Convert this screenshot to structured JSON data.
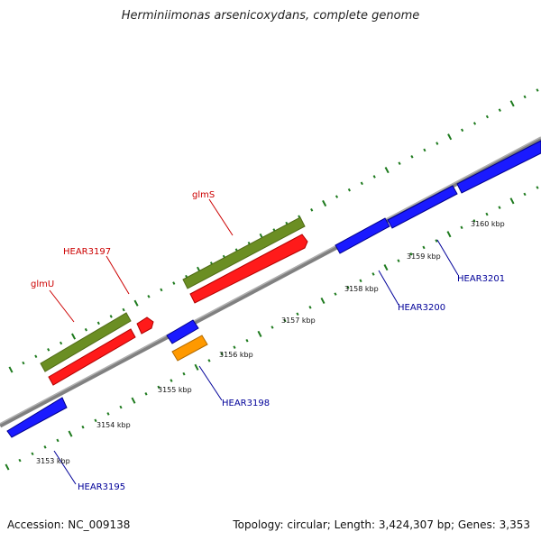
{
  "title": "Herminiimonas arsenicoxydans, complete genome",
  "footer": {
    "accession": "Accession: NC_009138",
    "summary": "Topology: circular; Length: 3,424,307 bp; Genes: 3,353"
  },
  "colors": {
    "backbone": "#808080",
    "tick_marks": "#1d7a1d",
    "forward_gene": "#ff1a1a",
    "green_feature": "#6b8e23",
    "reverse_gene": "#1a1aff",
    "orange_gene": "#ff9900",
    "label_red": "#cc0000",
    "label_blue": "#000099"
  },
  "tick_labels": [
    "3153 kbp",
    "3154 kbp",
    "3155 kbp",
    "3156 kbp",
    "3157 kbp",
    "3158 kbp",
    "3159 kbp",
    "3160 kbp"
  ],
  "gene_labels": [
    {
      "text": "glmU",
      "color": "red"
    },
    {
      "text": "HEAR3197",
      "color": "red"
    },
    {
      "text": "glmS",
      "color": "red"
    },
    {
      "text": "HEAR3195",
      "color": "blue"
    },
    {
      "text": "HEAR3198",
      "color": "blue"
    },
    {
      "text": "HEAR3200",
      "color": "blue"
    },
    {
      "text": "HEAR3201",
      "color": "blue"
    }
  ]
}
